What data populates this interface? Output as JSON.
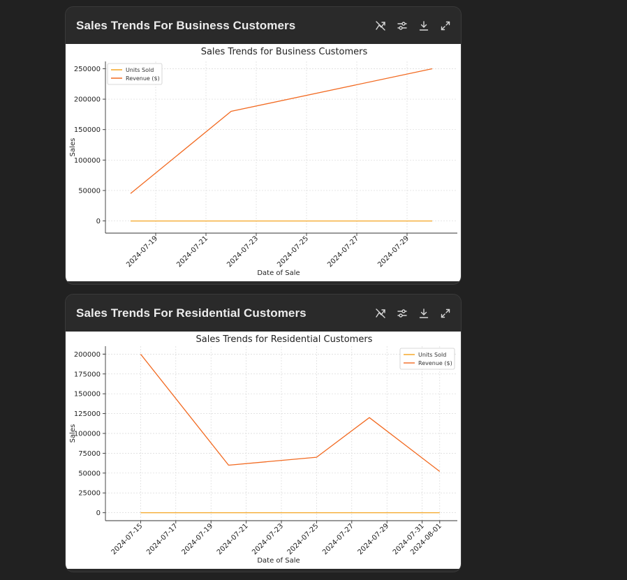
{
  "cards": [
    {
      "title": "Sales Trends For Business Customers",
      "toolbar": {
        "switch_label": "Switch to interactive chart",
        "customize_label": "Customize chart",
        "download_label": "Download chart",
        "expand_label": "Expand chart"
      }
    },
    {
      "title": "Sales Trends For Residential Customers",
      "toolbar": {
        "switch_label": "Switch to interactive chart",
        "customize_label": "Customize chart",
        "download_label": "Download chart",
        "expand_label": "Expand chart"
      }
    }
  ],
  "colors": {
    "units_sold": "#f5a623",
    "revenue": "#f26a21",
    "grid": "#d9d9d9"
  },
  "chart_data": [
    {
      "type": "line",
      "title": "Sales Trends for Business Customers",
      "xlabel": "Date of Sale",
      "ylabel": "Sales",
      "grid": true,
      "legend_position": "top-left",
      "x_type": "date",
      "xlim": [
        "2024-07-17",
        "2024-07-31"
      ],
      "ylim": [
        -20000,
        262000
      ],
      "xticks": [
        "2024-07-19",
        "2024-07-21",
        "2024-07-23",
        "2024-07-25",
        "2024-07-27",
        "2024-07-29"
      ],
      "yticks": [
        0,
        50000,
        100000,
        150000,
        200000,
        250000
      ],
      "series": [
        {
          "name": "Units Sold",
          "x": [
            "2024-07-18",
            "2024-07-22",
            "2024-07-30"
          ],
          "y": [
            0,
            0,
            0
          ]
        },
        {
          "name": "Revenue ($)",
          "x": [
            "2024-07-18",
            "2024-07-22",
            "2024-07-30"
          ],
          "y": [
            45000,
            180000,
            250000
          ]
        }
      ]
    },
    {
      "type": "line",
      "title": "Sales Trends for Residential Customers",
      "xlabel": "Date of Sale",
      "ylabel": "Sales",
      "grid": true,
      "legend_position": "top-right",
      "x_type": "date",
      "xlim": [
        "2024-07-13",
        "2024-08-02"
      ],
      "ylim": [
        -10000,
        210000
      ],
      "xticks": [
        "2024-07-15",
        "2024-07-17",
        "2024-07-19",
        "2024-07-21",
        "2024-07-23",
        "2024-07-25",
        "2024-07-27",
        "2024-07-29",
        "2024-07-31",
        "2024-08-01"
      ],
      "yticks": [
        0,
        25000,
        50000,
        75000,
        100000,
        125000,
        150000,
        175000,
        200000
      ],
      "series": [
        {
          "name": "Units Sold",
          "x": [
            "2024-07-15",
            "2024-07-20",
            "2024-07-25",
            "2024-07-28",
            "2024-08-01"
          ],
          "y": [
            0,
            0,
            0,
            0,
            0
          ]
        },
        {
          "name": "Revenue ($)",
          "x": [
            "2024-07-15",
            "2024-07-20",
            "2024-07-25",
            "2024-07-28",
            "2024-08-01"
          ],
          "y": [
            200000,
            60000,
            70000,
            120000,
            52000
          ]
        }
      ]
    }
  ]
}
